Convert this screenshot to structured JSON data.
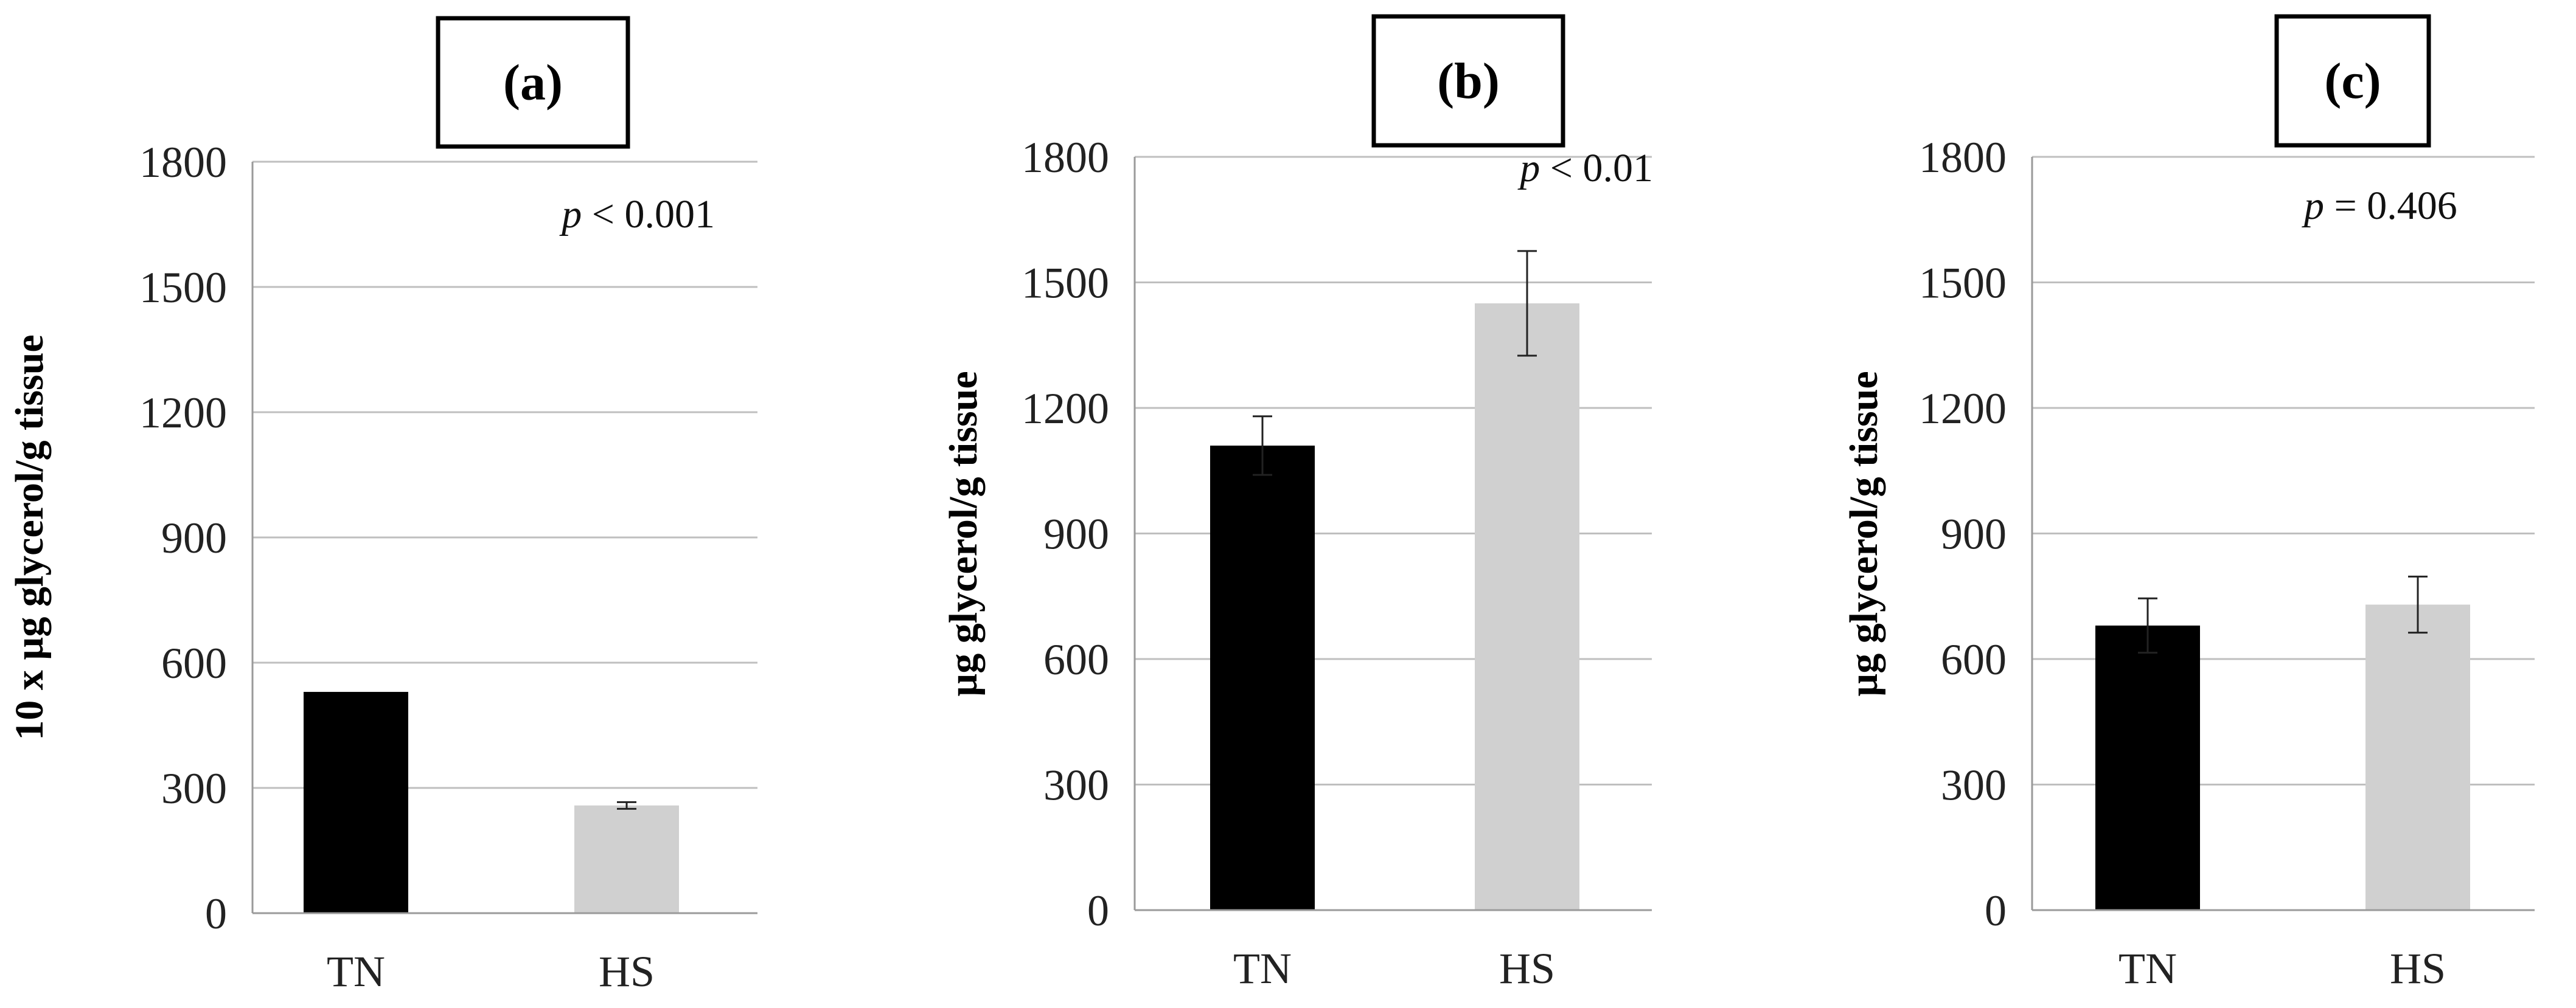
{
  "chart_data": [
    {
      "type": "bar",
      "panel_label": "(a)",
      "categories": [
        "TN",
        "HS"
      ],
      "values": [
        530,
        258
      ],
      "error": [
        null,
        8
      ],
      "colors": [
        "#000000",
        "#d0d0d0"
      ],
      "ylabel": "10 x µg glycerol/g tissue",
      "ylim": [
        0,
        1800
      ],
      "yticks": [
        0,
        300,
        600,
        900,
        1200,
        1500,
        1800
      ],
      "annotation": {
        "italic": "p",
        "rest": " < 0.001"
      },
      "grid": true
    },
    {
      "type": "bar",
      "panel_label": "(b)",
      "categories": [
        "TN",
        "HS"
      ],
      "values": [
        1110,
        1450
      ],
      "error": [
        70,
        125
      ],
      "colors": [
        "#000000",
        "#d0d0d0"
      ],
      "ylabel": "µg glycerol/g tissue",
      "ylim": [
        0,
        1800
      ],
      "yticks": [
        0,
        300,
        600,
        900,
        1200,
        1500,
        1800
      ],
      "annotation": {
        "italic": "p",
        "rest": " < 0.01"
      },
      "grid": true
    },
    {
      "type": "bar",
      "panel_label": "(c)",
      "categories": [
        "TN",
        "HS"
      ],
      "values": [
        680,
        730
      ],
      "error": [
        65,
        67
      ],
      "colors": [
        "#000000",
        "#d0d0d0"
      ],
      "ylabel": "µg glycerol/g tissue",
      "ylim": [
        0,
        1800
      ],
      "yticks": [
        0,
        300,
        600,
        900,
        1200,
        1500,
        1800
      ],
      "annotation": {
        "italic": "p",
        "rest": " = 0.406"
      },
      "grid": true
    }
  ]
}
